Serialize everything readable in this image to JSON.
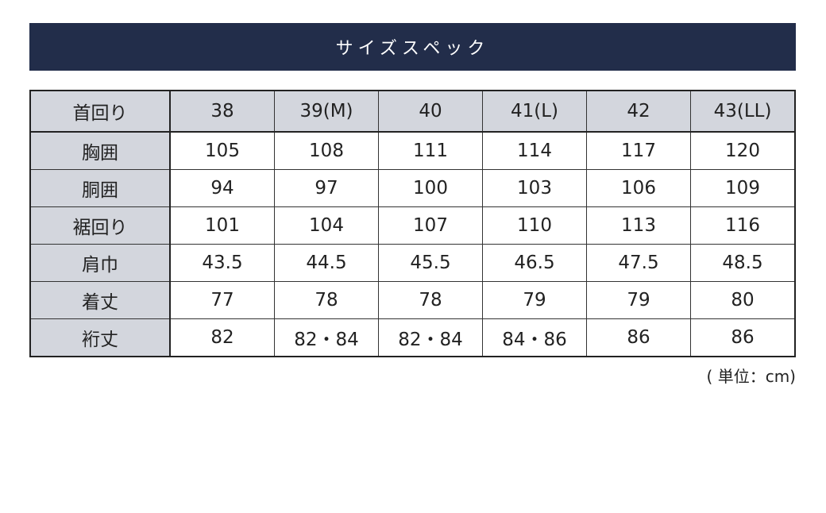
{
  "title": "サイズスペック",
  "table": {
    "header": {
      "label": "首回り",
      "sizes": [
        "38",
        "39(M)",
        "40",
        "41(L)",
        "42",
        "43(LL)"
      ]
    },
    "rows": [
      {
        "label": "胸囲",
        "values": [
          "105",
          "108",
          "111",
          "114",
          "117",
          "120"
        ]
      },
      {
        "label": "胴囲",
        "values": [
          "94",
          "97",
          "100",
          "103",
          "106",
          "109"
        ]
      },
      {
        "label": "裾回り",
        "values": [
          "101",
          "104",
          "107",
          "110",
          "113",
          "116"
        ]
      },
      {
        "label": "肩巾",
        "values": [
          "43.5",
          "44.5",
          "45.5",
          "46.5",
          "47.5",
          "48.5"
        ]
      },
      {
        "label": "着丈",
        "values": [
          "77",
          "78",
          "78",
          "79",
          "79",
          "80"
        ]
      },
      {
        "label": "裄丈",
        "values": [
          "82",
          "82・84",
          "82・84",
          "84・86",
          "86",
          "86"
        ]
      }
    ]
  },
  "unit_note": "( 単位：cm)",
  "colors": {
    "banner": "#222d4a",
    "header_cell": "#d3d6dd"
  }
}
